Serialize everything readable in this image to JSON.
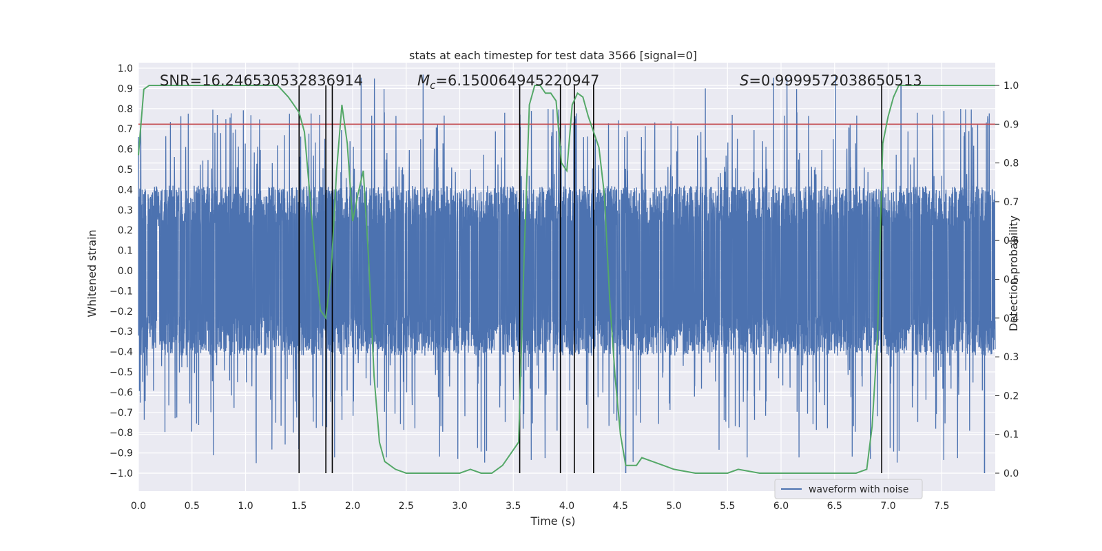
{
  "chart_data": {
    "type": "line",
    "title": "stats at each timestep for test data 3566 [signal=0]",
    "xlabel": "Time (s)",
    "ylabel": "Whitened strain",
    "y2label": "Detection probability",
    "xlim": [
      0.0,
      8.0
    ],
    "ylim": [
      -1.0,
      1.0
    ],
    "y2lim": [
      0.0,
      1.0
    ],
    "x_ticks": [
      "0.0",
      "0.5",
      "1.0",
      "1.5",
      "2.0",
      "2.5",
      "3.0",
      "3.5",
      "4.0",
      "4.5",
      "5.0",
      "5.5",
      "6.0",
      "6.5",
      "7.0",
      "7.5"
    ],
    "y_ticks": [
      "1.0",
      "0.9",
      "0.8",
      "0.7",
      "0.6",
      "0.5",
      "0.4",
      "0.3",
      "0.2",
      "0.1",
      "0.0",
      "−0.1",
      "−0.2",
      "−0.3",
      "−0.4",
      "−0.5",
      "−0.6",
      "−0.7",
      "−0.8",
      "−0.9",
      "−1.0"
    ],
    "y2_ticks": [
      "1.0",
      "0.9",
      "0.8",
      "0.7",
      "0.6",
      "0.5",
      "0.4",
      "0.3",
      "0.2",
      "0.1",
      "0.0"
    ],
    "threshold": 0.9,
    "annotations": {
      "snr_label": "SNR=16.246530532836914",
      "mc_symbol": "M",
      "mc_subscript": "c",
      "mc_value": "=6.150064945220947",
      "s_symbol": "S",
      "s_value": "=0.9999572038650513"
    },
    "event_lines_x": [
      1.5,
      1.75,
      1.81,
      3.56,
      3.94,
      4.07,
      4.25,
      6.94
    ],
    "series": [
      {
        "name": "waveform with noise",
        "color": "#4c72b0",
        "description": "noise band, approx ±0.45 with spikes to ±1.0"
      },
      {
        "name": "detection probability",
        "color": "#55a868",
        "x": [
          0.0,
          0.05,
          0.1,
          0.2,
          0.4,
          0.6,
          0.8,
          1.0,
          1.2,
          1.3,
          1.4,
          1.45,
          1.5,
          1.55,
          1.6,
          1.65,
          1.7,
          1.75,
          1.8,
          1.85,
          1.9,
          1.95,
          2.0,
          2.05,
          2.1,
          2.15,
          2.2,
          2.25,
          2.3,
          2.4,
          2.5,
          2.6,
          2.7,
          2.8,
          2.9,
          3.0,
          3.1,
          3.2,
          3.3,
          3.4,
          3.5,
          3.55,
          3.6,
          3.65,
          3.7,
          3.75,
          3.8,
          3.85,
          3.9,
          3.95,
          4.0,
          4.05,
          4.1,
          4.15,
          4.2,
          4.25,
          4.3,
          4.35,
          4.4,
          4.45,
          4.5,
          4.55,
          4.6,
          4.65,
          4.7,
          4.8,
          4.9,
          5.0,
          5.2,
          5.5,
          5.6,
          5.8,
          6.0,
          6.5,
          6.7,
          6.8,
          6.85,
          6.9,
          6.95,
          7.0,
          7.05,
          7.1,
          7.3,
          7.6,
          8.0
        ],
        "values": [
          0.82,
          0.99,
          1.0,
          1.0,
          1.0,
          1.0,
          1.0,
          1.0,
          1.0,
          1.0,
          0.97,
          0.95,
          0.93,
          0.88,
          0.72,
          0.55,
          0.42,
          0.4,
          0.52,
          0.78,
          0.95,
          0.85,
          0.65,
          0.72,
          0.78,
          0.55,
          0.25,
          0.08,
          0.03,
          0.01,
          0.0,
          0.0,
          0.0,
          0.0,
          0.0,
          0.0,
          0.01,
          0.0,
          0.0,
          0.02,
          0.06,
          0.08,
          0.55,
          0.95,
          1.0,
          1.0,
          0.98,
          0.98,
          0.96,
          0.8,
          0.78,
          0.95,
          0.98,
          0.97,
          0.92,
          0.88,
          0.84,
          0.72,
          0.45,
          0.25,
          0.1,
          0.02,
          0.02,
          0.02,
          0.04,
          0.03,
          0.02,
          0.01,
          0.0,
          0.0,
          0.01,
          0.0,
          0.0,
          0.0,
          0.0,
          0.01,
          0.12,
          0.35,
          0.85,
          0.92,
          0.97,
          1.0,
          1.0,
          1.0,
          1.0
        ]
      }
    ],
    "legend": {
      "label": "waveform with noise",
      "placement": "lower-right"
    }
  }
}
